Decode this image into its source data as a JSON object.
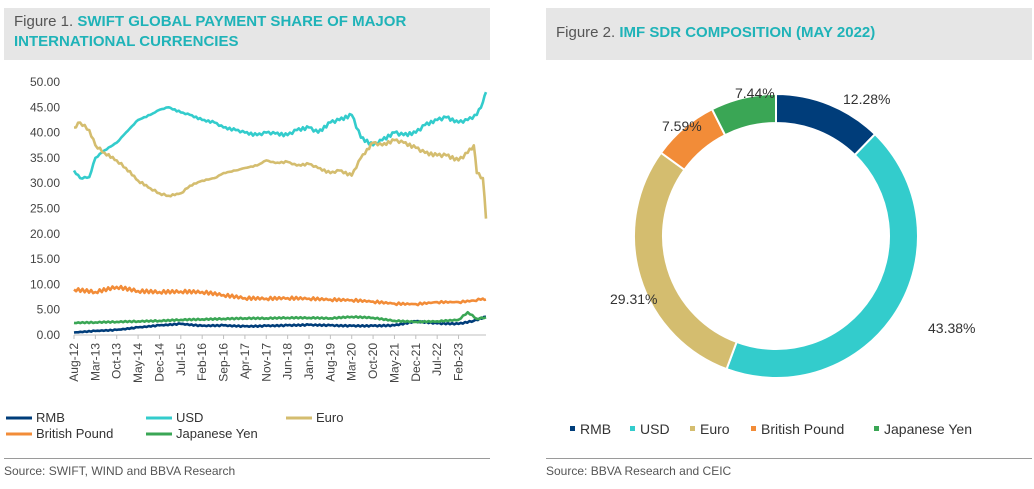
{
  "figure1": {
    "number": "Figure 1.",
    "title": "SWIFT GLOBAL PAYMENT SHARE OF MAJOR INTERNATIONAL CURRENCIES",
    "source": "Source: SWIFT, WIND and BBVA Research"
  },
  "figure2": {
    "number": "Figure 2.",
    "title": "IMF SDR COMPOSITION (MAY 2022)",
    "source": "Source: BBVA Research and CEIC"
  },
  "chart_data": [
    {
      "type": "line",
      "title": "SWIFT GLOBAL PAYMENT SHARE OF MAJOR INTERNATIONAL CURRENCIES",
      "xlabel": "",
      "ylabel": "",
      "ylim": [
        0,
        50
      ],
      "yticks": [
        "0.00",
        "5.00",
        "10.00",
        "15.00",
        "20.00",
        "25.00",
        "30.00",
        "35.00",
        "40.00",
        "45.00",
        "50.00"
      ],
      "x_tick_labels": [
        "Aug-12",
        "Mar-13",
        "Oct-13",
        "May-14",
        "Dec-14",
        "Jul-15",
        "Feb-16",
        "Sep-16",
        "Apr-17",
        "Nov-17",
        "Jun-18",
        "Jan-19",
        "Aug-19",
        "Mar-20",
        "Oct-20",
        "May-21",
        "Dec-21",
        "Jul-22",
        "Feb-23"
      ],
      "x_range": [
        "Aug-12",
        "Nov-23"
      ],
      "grid": false,
      "legend_position": "bottom",
      "series": [
        {
          "name": "RMB",
          "color": "#003d7a",
          "points": [
            [
              "Aug-12",
              0.5
            ],
            [
              "Mar-13",
              0.8
            ],
            [
              "Oct-13",
              1.0
            ],
            [
              "May-14",
              1.5
            ],
            [
              "Dec-14",
              1.9
            ],
            [
              "Jul-15",
              2.2
            ],
            [
              "Feb-16",
              1.8
            ],
            [
              "Sep-16",
              1.9
            ],
            [
              "Apr-17",
              1.7
            ],
            [
              "Nov-17",
              1.8
            ],
            [
              "Jun-18",
              1.9
            ],
            [
              "Jan-19",
              2.0
            ],
            [
              "Aug-19",
              1.9
            ],
            [
              "Mar-20",
              1.8
            ],
            [
              "Oct-20",
              1.8
            ],
            [
              "May-21",
              1.9
            ],
            [
              "Dec-21",
              2.7
            ],
            [
              "Jul-22",
              2.3
            ],
            [
              "Feb-23",
              2.2
            ],
            [
              "Jul-23",
              2.8
            ],
            [
              "Nov-23",
              3.6
            ]
          ]
        },
        {
          "name": "USD",
          "color": "#33cccc",
          "points": [
            [
              "Aug-12",
              32.5
            ],
            [
              "Oct-12",
              31.0
            ],
            [
              "Jan-13",
              31.2
            ],
            [
              "Mar-13",
              35.0
            ],
            [
              "Jun-13",
              36.5
            ],
            [
              "Oct-13",
              38.0
            ],
            [
              "Jan-14",
              40.0
            ],
            [
              "May-14",
              42.5
            ],
            [
              "Sep-14",
              43.5
            ],
            [
              "Dec-14",
              44.5
            ],
            [
              "Mar-15",
              45.0
            ],
            [
              "Jul-15",
              44.0
            ],
            [
              "Oct-15",
              43.5
            ],
            [
              "Feb-16",
              42.5
            ],
            [
              "Jun-16",
              42.0
            ],
            [
              "Sep-16",
              41.0
            ],
            [
              "Jan-17",
              40.5
            ],
            [
              "Apr-17",
              40.0
            ],
            [
              "Aug-17",
              39.5
            ],
            [
              "Nov-17",
              40.0
            ],
            [
              "Feb-18",
              39.8
            ],
            [
              "Jun-18",
              39.5
            ],
            [
              "Sep-18",
              40.5
            ],
            [
              "Jan-19",
              41.0
            ],
            [
              "Apr-19",
              40.0
            ],
            [
              "Aug-19",
              42.0
            ],
            [
              "Nov-19",
              42.5
            ],
            [
              "Mar-20",
              43.5
            ],
            [
              "Jun-20",
              39.0
            ],
            [
              "Oct-20",
              37.5
            ],
            [
              "Jan-21",
              38.5
            ],
            [
              "May-21",
              40.0
            ],
            [
              "Aug-21",
              39.5
            ],
            [
              "Dec-21",
              40.0
            ],
            [
              "Mar-22",
              41.5
            ],
            [
              "Jul-22",
              42.5
            ],
            [
              "Oct-22",
              43.0
            ],
            [
              "Feb-23",
              42.0
            ],
            [
              "May-23",
              42.5
            ],
            [
              "Aug-23",
              43.5
            ],
            [
              "Oct-23",
              46.0
            ],
            [
              "Nov-23",
              48.0
            ]
          ]
        },
        {
          "name": "Euro",
          "color": "#d4bd6f",
          "points": [
            [
              "Aug-12",
              41.0
            ],
            [
              "Oct-12",
              42.0
            ],
            [
              "Jan-13",
              40.5
            ],
            [
              "Mar-13",
              37.5
            ],
            [
              "Jun-13",
              36.0
            ],
            [
              "Oct-13",
              34.5
            ],
            [
              "Jan-14",
              33.0
            ],
            [
              "May-14",
              30.5
            ],
            [
              "Sep-14",
              29.0
            ],
            [
              "Dec-14",
              28.0
            ],
            [
              "Mar-15",
              27.5
            ],
            [
              "Jul-15",
              28.0
            ],
            [
              "Oct-15",
              29.5
            ],
            [
              "Feb-16",
              30.5
            ],
            [
              "Jun-16",
              31.0
            ],
            [
              "Sep-16",
              32.0
            ],
            [
              "Jan-17",
              32.5
            ],
            [
              "Apr-17",
              33.0
            ],
            [
              "Aug-17",
              33.5
            ],
            [
              "Nov-17",
              34.5
            ],
            [
              "Feb-18",
              34.0
            ],
            [
              "Jun-18",
              34.2
            ],
            [
              "Sep-18",
              33.5
            ],
            [
              "Jan-19",
              33.8
            ],
            [
              "Apr-19",
              33.0
            ],
            [
              "Aug-19",
              32.0
            ],
            [
              "Nov-19",
              32.5
            ],
            [
              "Mar-20",
              31.5
            ],
            [
              "Jun-20",
              35.0
            ],
            [
              "Oct-20",
              38.0
            ],
            [
              "Jan-21",
              37.5
            ],
            [
              "May-21",
              38.5
            ],
            [
              "Aug-21",
              38.0
            ],
            [
              "Dec-21",
              37.0
            ],
            [
              "Mar-22",
              36.0
            ],
            [
              "Jul-22",
              35.5
            ],
            [
              "Oct-22",
              35.5
            ],
            [
              "Feb-23",
              34.5
            ],
            [
              "May-23",
              36.0
            ],
            [
              "Jul-23",
              37.5
            ],
            [
              "Aug-23",
              32.0
            ],
            [
              "Oct-23",
              31.0
            ],
            [
              "Nov-23",
              23.0
            ]
          ]
        },
        {
          "name": "British Pound",
          "color": "#f28c38",
          "points": [
            [
              "Aug-12",
              9.0
            ],
            [
              "Mar-13",
              8.5
            ],
            [
              "Oct-13",
              9.5
            ],
            [
              "May-14",
              8.7
            ],
            [
              "Dec-14",
              8.5
            ],
            [
              "Jul-15",
              8.6
            ],
            [
              "Feb-16",
              8.5
            ],
            [
              "Sep-16",
              7.9
            ],
            [
              "Apr-17",
              7.3
            ],
            [
              "Nov-17",
              7.2
            ],
            [
              "Jun-18",
              7.3
            ],
            [
              "Jan-19",
              7.2
            ],
            [
              "Aug-19",
              7.0
            ],
            [
              "Mar-20",
              6.9
            ],
            [
              "Oct-20",
              6.6
            ],
            [
              "May-21",
              6.2
            ],
            [
              "Dec-21",
              6.1
            ],
            [
              "Jul-22",
              6.5
            ],
            [
              "Feb-23",
              6.5
            ],
            [
              "Jul-23",
              6.8
            ],
            [
              "Oct-23",
              7.2
            ],
            [
              "Nov-23",
              7.0
            ]
          ]
        },
        {
          "name": "Japanese Yen",
          "color": "#3aa655",
          "points": [
            [
              "Aug-12",
              2.4
            ],
            [
              "Mar-13",
              2.5
            ],
            [
              "Oct-13",
              2.6
            ],
            [
              "May-14",
              2.7
            ],
            [
              "Dec-14",
              2.8
            ],
            [
              "Jul-15",
              3.0
            ],
            [
              "Feb-16",
              3.1
            ],
            [
              "Sep-16",
              3.2
            ],
            [
              "Apr-17",
              3.3
            ],
            [
              "Nov-17",
              3.3
            ],
            [
              "Jun-18",
              3.4
            ],
            [
              "Jan-19",
              3.4
            ],
            [
              "Aug-19",
              3.3
            ],
            [
              "Mar-20",
              3.6
            ],
            [
              "Oct-20",
              3.4
            ],
            [
              "May-21",
              2.8
            ],
            [
              "Dec-21",
              2.6
            ],
            [
              "Jul-22",
              2.7
            ],
            [
              "Feb-23",
              3.0
            ],
            [
              "May-23",
              4.5
            ],
            [
              "Aug-23",
              3.2
            ],
            [
              "Nov-23",
              3.5
            ]
          ]
        }
      ]
    },
    {
      "type": "pie",
      "title": "IMF SDR COMPOSITION (MAY 2022)",
      "legend_position": "bottom",
      "labels": [
        "RMB",
        "USD",
        "Euro",
        "British Pound",
        "Japanese Yen"
      ],
      "values": [
        12.28,
        43.38,
        29.31,
        7.59,
        7.44
      ],
      "value_labels": [
        "12.28%",
        "43.38%",
        "29.31%",
        "7.59%",
        "7.44%"
      ],
      "colors": [
        "#003d7a",
        "#33cccc",
        "#d4bd6f",
        "#f28c38",
        "#3aa655"
      ]
    }
  ]
}
